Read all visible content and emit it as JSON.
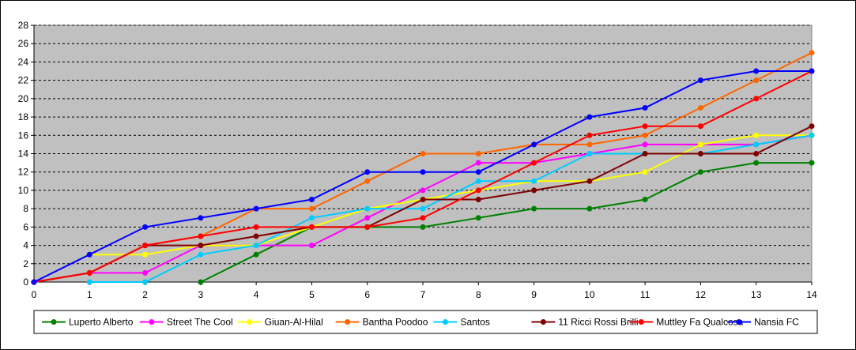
{
  "chart_data": {
    "type": "line",
    "title": "",
    "xlabel": "",
    "ylabel": "",
    "x": [
      0,
      1,
      2,
      3,
      4,
      5,
      6,
      7,
      8,
      9,
      10,
      11,
      12,
      13,
      14
    ],
    "xlim": [
      0,
      14
    ],
    "ylim": [
      0,
      28
    ],
    "y_ticks": [
      0,
      2,
      4,
      6,
      8,
      10,
      12,
      14,
      16,
      18,
      20,
      22,
      24,
      26,
      28
    ],
    "grid": "horizontal dashed",
    "plot_background": "#c0c0c0",
    "legend_position": "bottom",
    "series": [
      {
        "name": "Luperto Alberto",
        "color": "#008000",
        "values": [
          null,
          null,
          null,
          0,
          3,
          6,
          6,
          6,
          7,
          8,
          8,
          9,
          12,
          13,
          13
        ]
      },
      {
        "name": "Street The Cool",
        "color": "#ff00ff",
        "values": [
          null,
          1,
          1,
          4,
          4,
          4,
          7,
          10,
          13,
          13,
          14,
          15,
          15,
          15,
          16
        ]
      },
      {
        "name": "Giuan-Al-Hilal",
        "color": "#ffff00",
        "values": [
          null,
          3,
          3,
          4,
          4,
          6,
          8,
          9,
          10,
          11,
          11,
          12,
          15,
          16,
          16
        ]
      },
      {
        "name": "Bantha Poodoo",
        "color": "#ff6600",
        "values": [
          0,
          1,
          4,
          5,
          8,
          8,
          11,
          14,
          14,
          15,
          15,
          16,
          19,
          22,
          25
        ]
      },
      {
        "name": "Santos",
        "color": "#00ccff",
        "values": [
          null,
          0,
          0,
          3,
          4,
          7,
          8,
          8,
          11,
          11,
          14,
          14,
          14,
          15,
          16
        ]
      },
      {
        "name": "11 Ricci Rossi Brilli",
        "color": "#800000",
        "values": [
          0,
          1,
          4,
          4,
          5,
          6,
          6,
          9,
          9,
          10,
          11,
          14,
          14,
          14,
          17
        ]
      },
      {
        "name": "Muttley Fa Qualcosa",
        "color": "#ff0000",
        "values": [
          0,
          1,
          4,
          5,
          6,
          6,
          6,
          7,
          10,
          13,
          16,
          17,
          17,
          20,
          23
        ]
      },
      {
        "name": "Nansia FC",
        "color": "#0000ff",
        "values": [
          0,
          3,
          6,
          7,
          8,
          9,
          12,
          12,
          12,
          15,
          18,
          19,
          22,
          23,
          23
        ]
      }
    ]
  }
}
